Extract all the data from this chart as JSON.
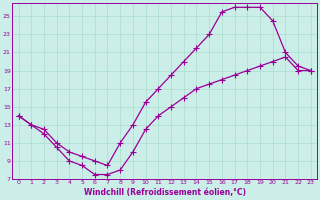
{
  "xlabel": "Windchill (Refroidissement éolien,°C)",
  "bg_color": "#cceee8",
  "line_color": "#990099",
  "grid_color": "#aaddcc",
  "xlim": [
    -0.5,
    23.5
  ],
  "ylim": [
    7,
    26.5
  ],
  "xticks": [
    0,
    1,
    2,
    3,
    4,
    5,
    6,
    7,
    8,
    9,
    10,
    11,
    12,
    13,
    14,
    15,
    16,
    17,
    18,
    19,
    20,
    21,
    22,
    23
  ],
  "yticks": [
    7,
    9,
    11,
    13,
    15,
    17,
    19,
    21,
    23,
    25
  ],
  "upper_x": [
    0,
    1,
    2,
    3,
    4,
    5,
    6,
    7,
    8,
    9,
    10,
    11,
    12,
    13,
    14,
    15,
    16,
    17,
    18,
    19,
    20,
    21,
    22,
    23
  ],
  "upper_y": [
    14,
    13,
    12.5,
    11,
    10,
    9.5,
    9,
    8.5,
    11,
    13,
    15.5,
    17,
    18.5,
    20,
    21.5,
    23,
    25.5,
    26,
    26,
    26,
    24.5,
    21,
    19.5,
    19
  ],
  "lower_x": [
    0,
    1,
    2,
    3,
    4,
    5,
    6,
    7,
    8,
    9,
    10,
    11,
    12,
    13,
    14,
    15,
    16,
    17,
    18,
    19,
    20,
    21,
    22,
    23
  ],
  "lower_y": [
    14,
    13,
    12,
    10.5,
    9,
    8.5,
    7.5,
    7.5,
    8,
    10,
    12.5,
    14,
    15,
    16,
    17,
    17.5,
    18,
    18.5,
    19,
    19.5,
    20,
    20.5,
    19,
    19
  ],
  "marker_style": "+",
  "marker_size": 4,
  "linewidth": 0.9,
  "tick_fontsize": 4.5,
  "xlabel_fontsize": 5.5
}
